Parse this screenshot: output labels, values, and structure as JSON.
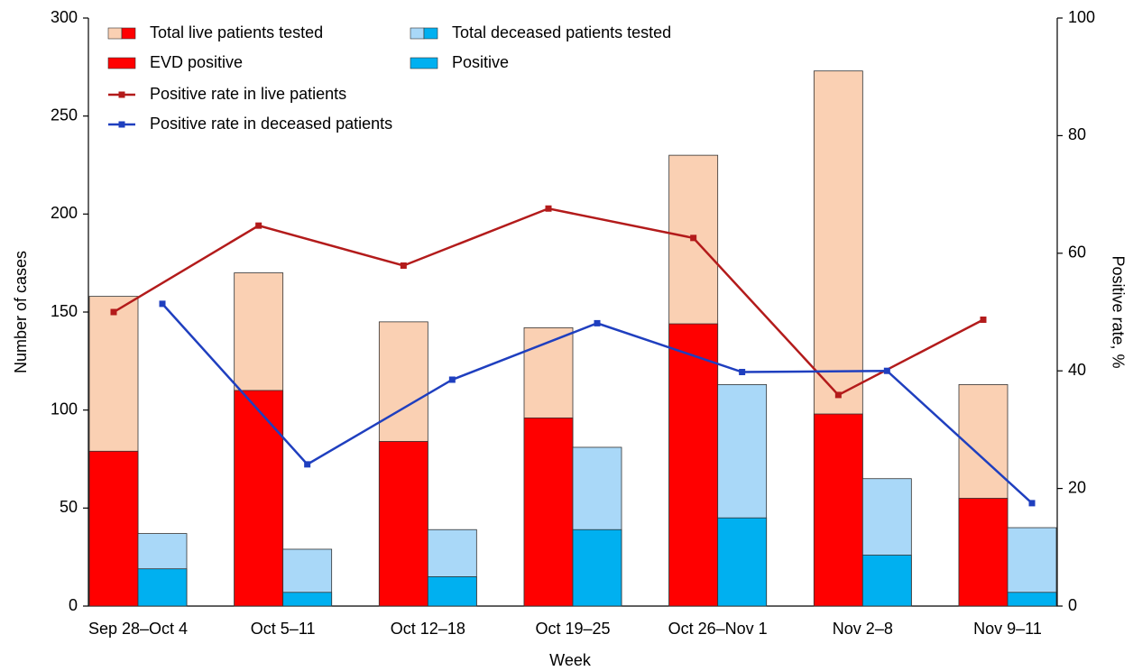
{
  "chart_data": {
    "type": "bar",
    "xlabel": "Week",
    "ylabel": "Number of cases",
    "y2label": "Positive rate, %",
    "categories": [
      "Sep 28–Oct 4",
      "Oct 5–11",
      "Oct 12–18",
      "Oct 19–25",
      "Oct 26–Nov 1",
      "Nov 2–8",
      "Nov 9–11"
    ],
    "ylim": [
      0,
      300
    ],
    "yticks": [
      0,
      50,
      100,
      150,
      200,
      250,
      300
    ],
    "y2lim": [
      0,
      100
    ],
    "y2ticks": [
      0,
      20,
      40,
      60,
      80,
      100
    ],
    "series": [
      {
        "name": "Total live patients tested",
        "type": "bar",
        "group": 0,
        "color": "#fad0b3",
        "values": [
          158,
          170,
          145,
          142,
          230,
          273,
          113
        ]
      },
      {
        "name": "EVD positive",
        "type": "bar",
        "group": 0,
        "color": "#ff0000",
        "values": [
          79,
          110,
          84,
          96,
          144,
          98,
          55
        ]
      },
      {
        "name": "Total deceased patients tested",
        "type": "bar",
        "group": 1,
        "color": "#a9d8f8",
        "values": [
          37,
          29,
          39,
          81,
          113,
          65,
          40
        ]
      },
      {
        "name": "Positive",
        "type": "bar",
        "group": 1,
        "color": "#00b0f0",
        "values": [
          19,
          7,
          15,
          39,
          45,
          26,
          7
        ]
      },
      {
        "name": "Positive rate in live patients",
        "type": "line",
        "group": 0,
        "axis": "y2",
        "color": "#b31b1b",
        "values": [
          50,
          64.7,
          57.9,
          67.6,
          62.6,
          35.9,
          48.7
        ]
      },
      {
        "name": "Positive rate in deceased patients",
        "type": "line",
        "group": 1,
        "axis": "y2",
        "color": "#1f3fbf",
        "values": [
          51.4,
          24.1,
          38.5,
          48.1,
          39.8,
          40,
          17.5
        ]
      }
    ]
  }
}
